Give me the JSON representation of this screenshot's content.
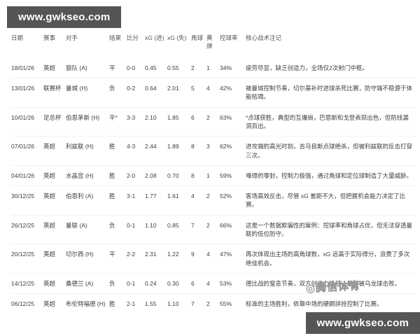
{
  "brand": {
    "top_text": "www.gwkseo.com",
    "bottom_text": "www.gwkseo.com"
  },
  "watermark": {
    "text": "◎腾信体育"
  },
  "colors": {
    "brand_box_bg": "#545557",
    "brand_box_text": "#ffffff",
    "table_text": "#3d3d3d"
  },
  "table": {
    "columns": [
      "日期",
      "赛事",
      "对手",
      "结果",
      "比分",
      "xG (进)",
      "xG (失)",
      "角球",
      "黄牌",
      "控球率",
      "核心战术注记"
    ],
    "rows": [
      {
        "date": "18/01/26",
        "comp": "英超",
        "opp": "狼队 (A)",
        "result": "平",
        "score": "0-0",
        "xg_for": "0.45",
        "xg_against": "0.55",
        "corners": "2",
        "yellows": "1",
        "possession": "34%",
        "note": "疲劳尽显，缺乏创造力，全场仅2次射门中框。"
      },
      {
        "date": "13/01/26",
        "comp": "联赛杯",
        "opp": "曼城 (H)",
        "result": "负",
        "score": "0-2",
        "xg_for": "0.64",
        "xg_against": "2.01",
        "corners": "5",
        "yellows": "4",
        "possession": "42%",
        "note": "被曼城控制节奏，切尔基补时进球杀死比赛，防守端不稳源于体能枯竭。"
      },
      {
        "date": "10/01/26",
        "comp": "足总杯",
        "opp": "伯恩茅斯 (H)",
        "result": "平*",
        "score": "3-3",
        "xg_for": "2.10",
        "xg_against": "1.85",
        "corners": "6",
        "yellows": "2",
        "possession": "63%",
        "note": "*点球获胜，典型的互爆局，巴恩斯和戈登表现出色，但防线漏洞百出。"
      },
      {
        "date": "07/01/26",
        "comp": "英超",
        "opp": "利兹联 (H)",
        "result": "胜",
        "score": "4-3",
        "xg_for": "2.44",
        "xg_against": "1.89",
        "corners": "8",
        "yellows": "3",
        "possession": "62%",
        "note": "进攻端的高光时刻，吉马良斯点球绝杀，但被利兹联的反击打穿三次。"
      },
      {
        "date": "04/01/26",
        "comp": "英超",
        "opp": "水晶宫 (H)",
        "result": "胜",
        "score": "2-0",
        "xg_for": "2.08",
        "xg_against": "0.70",
        "corners": "8",
        "yellows": "1",
        "possession": "59%",
        "note": "难得的零封，控制力极强，通过角球和定位球制造了大量威胁。"
      },
      {
        "date": "30/12/25",
        "comp": "英超",
        "opp": "伯恩利 (A)",
        "result": "胜",
        "score": "3-1",
        "xg_for": "1.77",
        "xg_against": "1.61",
        "corners": "4",
        "yellows": "2",
        "possession": "52%",
        "note": "客场高效反击，尽管 xG 差距不大，但把握机会能力决定了比赛。"
      },
      {
        "date": "26/12/25",
        "comp": "英超",
        "opp": "曼联 (A)",
        "result": "负",
        "score": "0-1",
        "xg_for": "1.10",
        "xg_against": "0.85",
        "corners": "7",
        "yellows": "2",
        "possession": "66%",
        "note": "这是一个数据欺骗性的案例：控球率和角球占优，但无法穿透曼联的低位防守。"
      },
      {
        "date": "20/12/25",
        "comp": "英超",
        "opp": "切尔西 (H)",
        "result": "平",
        "score": "2-2",
        "xg_for": "2.31",
        "xg_against": "1.22",
        "corners": "9",
        "yellows": "4",
        "possession": "47%",
        "note": "再次体现出主场的高角球数，xG 远高于实际得分，浪费了多次绝佳机会。"
      },
      {
        "date": "14/12/25",
        "comp": "英超",
        "opp": "桑德兰 (A)",
        "result": "负",
        "score": "0-1",
        "xg_for": "0.24",
        "xg_against": "0.30",
        "corners": "6",
        "yellows": "4",
        "possession": "53%",
        "note": "德比战的窒息节奏，双方创造力极低，最终被乌龙球击败。"
      },
      {
        "date": "06/12/25",
        "comp": "英超",
        "opp": "布伦特福德 (H)",
        "result": "胜",
        "score": "2-1",
        "xg_for": "1.55",
        "xg_against": "1.10",
        "corners": "7",
        "yellows": "2",
        "possession": "55%",
        "note": "标准的主场胜利，依靠中场的硬朗拼抢控制了比赛。"
      }
    ]
  }
}
